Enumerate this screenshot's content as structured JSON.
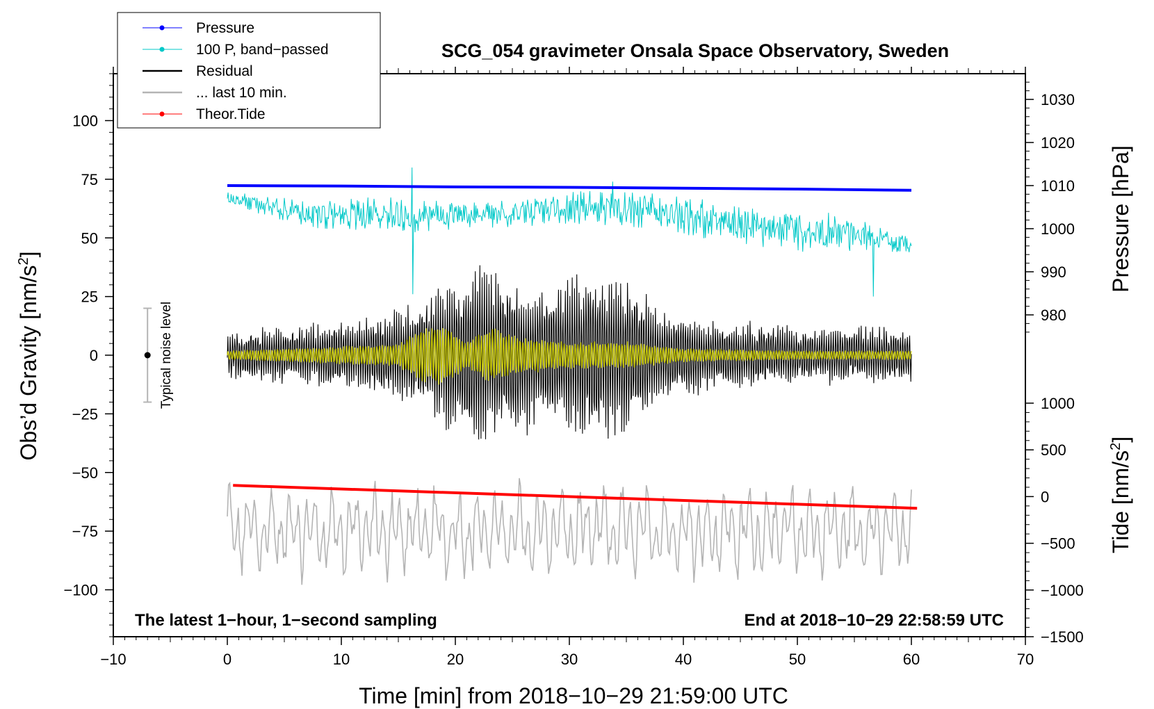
{
  "chart_data": {
    "type": "line",
    "title": "SCG_054 gravimeter Onsala Space Observatory, Sweden",
    "xlabel": "Time [min] from 2018−10−29 21:59:00 UTC",
    "ylabel_left": "Obs’d Gravity [nm/s",
    "ylabel_left_sup": "2",
    "ylabel_left_end": "]",
    "ylabel_right_pressure": "Pressure [hPa]",
    "ylabel_right_tide": "Tide [nm/s",
    "ylabel_right_tide_sup": "2",
    "ylabel_right_tide_end": "]",
    "xlim": [
      -10,
      70
    ],
    "ylim": [
      -120,
      120
    ],
    "x_ticks": [
      "−10",
      "0",
      "10",
      "20",
      "30",
      "40",
      "50",
      "60",
      "70"
    ],
    "y_ticks_left": [
      "100",
      "75",
      "50",
      "25",
      "0",
      "−25",
      "−50",
      "−75",
      "−100"
    ],
    "y_ticks_pressure": [
      "1030",
      "1020",
      "1010",
      "1000",
      "990",
      "980"
    ],
    "y_ticks_tide": [
      "1000",
      "500",
      "0",
      "−500",
      "−1000",
      "−1500"
    ],
    "pressure_range_hPa": [
      980,
      1030
    ],
    "tide_range": [
      -1500,
      1000
    ],
    "legend": [
      {
        "label": "Pressure",
        "color": "#0000ff",
        "marker": true
      },
      {
        "label": "100 P, band−passed",
        "color": "#00c8c8",
        "marker": true
      },
      {
        "label": "Residual",
        "color": "#000000",
        "marker": false
      },
      {
        "label": "... last 10 min.",
        "color": "#b4b4b4",
        "marker": false
      },
      {
        "label": "Theor.Tide",
        "color": "#ff0000",
        "marker": true
      }
    ],
    "series": [
      {
        "name": "Pressure",
        "unit": "hPa",
        "color": "#0000ff",
        "x": [
          0,
          10,
          20,
          30,
          40,
          50,
          60
        ],
        "values": [
          1010.0,
          1009.9,
          1009.7,
          1009.6,
          1009.4,
          1009.2,
          1008.9
        ]
      },
      {
        "name": "100 P, band−passed",
        "unit": "nm/s2 (plotted)",
        "color": "#00c8c8",
        "base": [
          67,
          60,
          60,
          60,
          63,
          62,
          55,
          52,
          48
        ],
        "amplitude": [
          3,
          6,
          8,
          6,
          7,
          8,
          9,
          9,
          5
        ]
      },
      {
        "name": "Residual",
        "unit": "nm/s2",
        "color": "#000000",
        "envelope_x": [
          0,
          10,
          15,
          18,
          21,
          24,
          28,
          32,
          35,
          38,
          42,
          46,
          50,
          55,
          60
        ],
        "envelope_amplitude": [
          10,
          15,
          20,
          28,
          40,
          38,
          30,
          38,
          35,
          22,
          15,
          15,
          12,
          13,
          12
        ]
      },
      {
        "name": "Yellow band−passed",
        "unit": "nm/s2",
        "color": "#d2d200",
        "envelope_x": [
          0,
          15,
          17,
          19,
          21,
          23,
          26,
          30,
          35,
          40,
          50,
          60
        ],
        "envelope_amplitude": [
          2,
          5,
          12,
          14,
          6,
          12,
          8,
          6,
          6,
          3,
          2,
          2
        ]
      },
      {
        "name": "Theor.Tide",
        "unit": "nm/s2",
        "color": "#ff0000",
        "x": [
          0.5,
          60.5
        ],
        "values": [
          120,
          -125
        ]
      },
      {
        "name": "... last 10 min.",
        "unit": "nm/s2",
        "color": "#b4b4b4",
        "center": -75,
        "amplitude": 20
      }
    ],
    "noise_level": {
      "x": -7,
      "center": 0,
      "half_range": 20,
      "label": "Typical noise level"
    },
    "annotations": {
      "bottom_left": "The latest 1−hour, 1−second sampling",
      "bottom_right": "End at 2018−10−29 22:58:59 UTC"
    }
  }
}
